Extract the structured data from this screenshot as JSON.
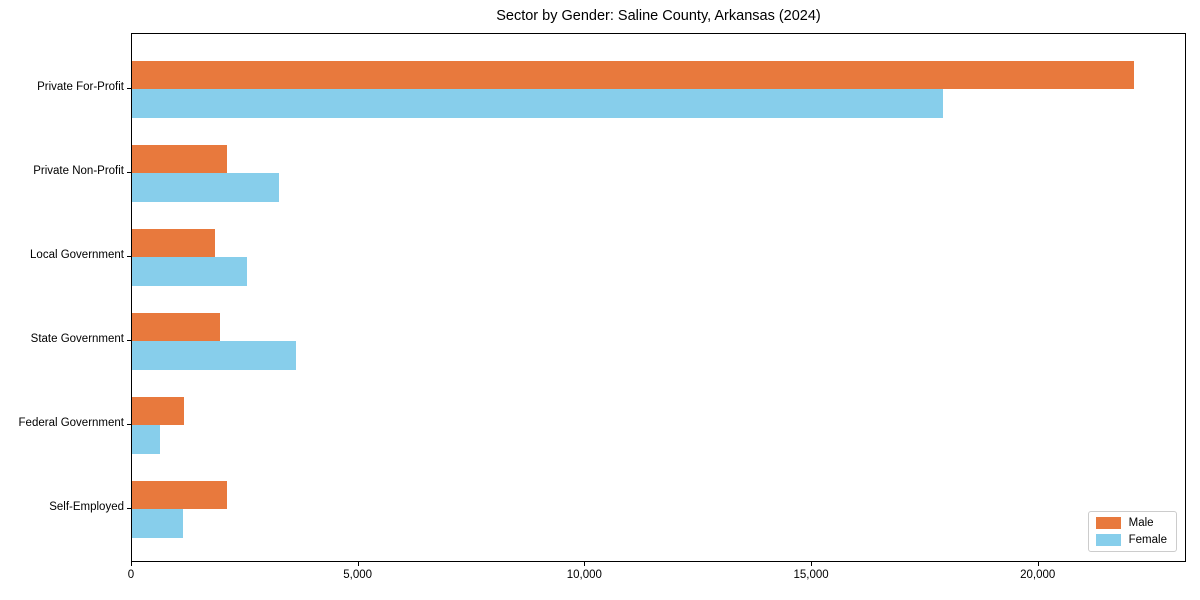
{
  "title": "Sector by Gender: Saline County, Arkansas (2024)",
  "chart_data": {
    "type": "bar",
    "orientation": "horizontal",
    "title": "Sector by Gender: Saline County, Arkansas (2024)",
    "categories": [
      "Private For-Profit",
      "Private Non-Profit",
      "Local Government",
      "State Government",
      "Federal Government",
      "Self-Employed"
    ],
    "series": [
      {
        "name": "Male",
        "color": "#e8793d",
        "values": [
          22140,
          2100,
          1830,
          1940,
          1140,
          2110
        ]
      },
      {
        "name": "Female",
        "color": "#87ceeb",
        "values": [
          17930,
          3240,
          2550,
          3620,
          620,
          1130
        ]
      }
    ],
    "xlabel": "",
    "ylabel": "",
    "xlim": [
      0,
      23270
    ],
    "xticks": [
      {
        "value": 0,
        "label": "0"
      },
      {
        "value": 5000,
        "label": "5,000"
      },
      {
        "value": 10000,
        "label": "10,000"
      },
      {
        "value": 15000,
        "label": "15,000"
      },
      {
        "value": 20000,
        "label": "20,000"
      }
    ],
    "legend": {
      "position": "lower right",
      "entries": [
        "Male",
        "Female"
      ]
    },
    "grid": false
  }
}
